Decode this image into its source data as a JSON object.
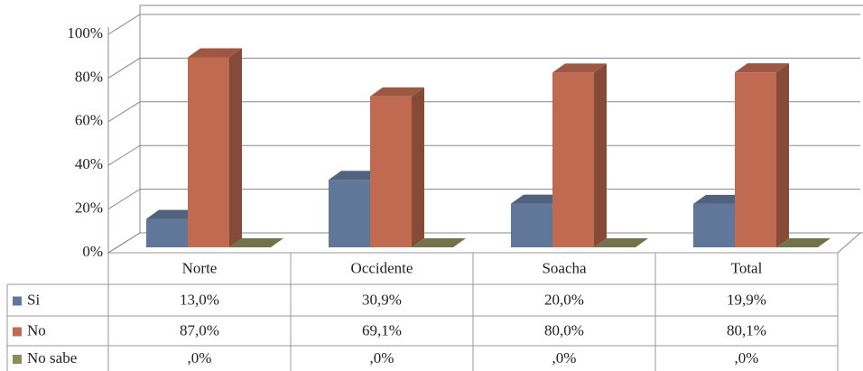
{
  "chart_data": {
    "type": "bar3d",
    "categories": [
      "Norte",
      "Occidente",
      "Soacha",
      "Total"
    ],
    "series": [
      {
        "name": "Si",
        "color": "#61779a",
        "values": [
          13.0,
          30.9,
          20.0,
          19.9
        ],
        "value_labels": [
          "13,0%",
          "30,9%",
          "20,0%",
          "19,9%"
        ]
      },
      {
        "name": "No",
        "color": "#c06a52",
        "values": [
          87.0,
          69.1,
          80.0,
          80.1
        ],
        "value_labels": [
          "87,0%",
          "69,1%",
          "80,0%",
          "80,1%"
        ]
      },
      {
        "name": "No sabe",
        "color": "#8c8b5c",
        "values": [
          0,
          0,
          0,
          0
        ],
        "value_labels": [
          ",0%",
          ",0%",
          ",0%",
          ",0%"
        ]
      }
    ],
    "ylim": [
      0,
      100
    ],
    "yticks": [
      {
        "value": 0,
        "label": "0%"
      },
      {
        "value": 20,
        "label": "20%"
      },
      {
        "value": 40,
        "label": "40%"
      },
      {
        "value": 60,
        "label": "60%"
      },
      {
        "value": 80,
        "label": "80%"
      },
      {
        "value": 100,
        "label": "100%"
      }
    ],
    "grid": true
  }
}
